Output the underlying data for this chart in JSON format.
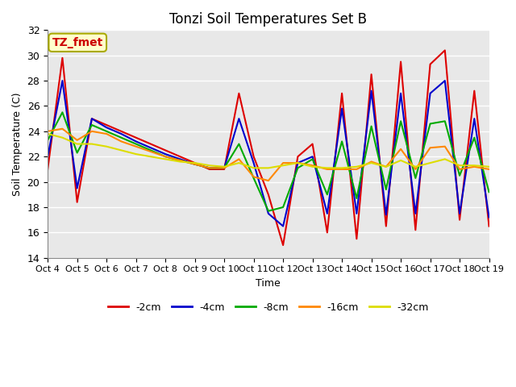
{
  "title": "Tonzi Soil Temperatures Set B",
  "xlabel": "Time",
  "ylabel": "Soil Temperature (C)",
  "ylim": [
    14,
    32
  ],
  "xlim": [
    0,
    15
  ],
  "x_tick_labels": [
    "Oct 4",
    "Oct 5",
    "Oct 6",
    "Oct 7",
    "Oct 8",
    "Oct 9",
    "Oct 10",
    "Oct 11",
    "Oct 12",
    "Oct 13",
    "Oct 14",
    "Oct 15",
    "Oct 16",
    "Oct 17",
    "Oct 18",
    "Oct 19"
  ],
  "yticks": [
    14,
    16,
    18,
    20,
    22,
    24,
    26,
    28,
    30,
    32
  ],
  "annotation_text": "TZ_fmet",
  "annotation_color": "#cc0000",
  "annotation_bg": "#ffffcc",
  "annotation_border": "#aaaa00",
  "series": {
    "-2cm": {
      "color": "#dd0000",
      "x": [
        0.0,
        0.5,
        1.0,
        1.5,
        2.0,
        2.5,
        3.0,
        3.5,
        4.0,
        4.5,
        5.0,
        5.5,
        6.0,
        6.5,
        7.0,
        7.5,
        8.0,
        8.5,
        9.0,
        9.5,
        10.0,
        10.5,
        11.0,
        11.5,
        12.0,
        12.5,
        13.0,
        13.5,
        14.0,
        14.5,
        15.0
      ],
      "y": [
        21.0,
        29.8,
        18.4,
        25.0,
        24.5,
        24.0,
        23.5,
        23.0,
        22.5,
        22.0,
        21.5,
        21.0,
        21.0,
        27.0,
        22.0,
        19.0,
        15.0,
        22.0,
        23.0,
        16.0,
        27.0,
        15.5,
        28.5,
        16.5,
        29.5,
        16.2,
        29.3,
        30.4,
        17.0,
        27.2,
        16.5
      ]
    },
    "-4cm": {
      "color": "#0000cc",
      "x": [
        0.0,
        0.5,
        1.0,
        1.5,
        2.0,
        2.5,
        3.0,
        3.5,
        4.0,
        4.5,
        5.0,
        5.5,
        6.0,
        6.5,
        7.0,
        7.5,
        8.0,
        8.5,
        9.0,
        9.5,
        10.0,
        10.5,
        11.0,
        11.5,
        12.0,
        12.5,
        13.0,
        13.5,
        14.0,
        14.5,
        15.0
      ],
      "y": [
        22.0,
        28.0,
        19.5,
        25.0,
        24.3,
        23.8,
        23.2,
        22.7,
        22.2,
        21.8,
        21.4,
        21.1,
        21.1,
        25.0,
        21.5,
        17.5,
        16.5,
        21.5,
        22.0,
        17.5,
        25.8,
        17.5,
        27.2,
        17.4,
        27.0,
        17.5,
        27.0,
        28.0,
        17.5,
        25.0,
        17.2
      ]
    },
    "-8cm": {
      "color": "#00aa00",
      "x": [
        0.0,
        0.5,
        1.0,
        1.5,
        2.0,
        2.5,
        3.0,
        3.5,
        4.0,
        4.5,
        5.0,
        5.5,
        6.0,
        6.5,
        7.0,
        7.5,
        8.0,
        8.5,
        9.0,
        9.5,
        10.0,
        10.5,
        11.0,
        11.5,
        12.0,
        12.5,
        13.0,
        13.5,
        14.0,
        14.5,
        15.0
      ],
      "y": [
        23.3,
        25.5,
        22.3,
        24.5,
        24.0,
        23.5,
        23.0,
        22.5,
        22.0,
        21.7,
        21.4,
        21.1,
        21.1,
        23.0,
        20.3,
        17.7,
        18.0,
        21.1,
        21.8,
        19.0,
        23.2,
        18.7,
        24.4,
        19.4,
        24.8,
        20.3,
        24.6,
        24.8,
        20.5,
        23.5,
        19.2
      ]
    },
    "-16cm": {
      "color": "#ff8800",
      "x": [
        0.0,
        0.5,
        1.0,
        1.5,
        2.0,
        2.5,
        3.0,
        3.5,
        4.0,
        4.5,
        5.0,
        5.5,
        6.0,
        6.5,
        7.0,
        7.5,
        8.0,
        8.5,
        9.0,
        9.5,
        10.0,
        10.5,
        11.0,
        11.5,
        12.0,
        12.5,
        13.0,
        13.5,
        14.0,
        14.5,
        15.0
      ],
      "y": [
        24.0,
        24.2,
        23.3,
        24.0,
        23.8,
        23.2,
        22.8,
        22.4,
        22.0,
        21.7,
        21.4,
        21.1,
        21.1,
        21.8,
        20.4,
        20.1,
        21.5,
        21.5,
        21.3,
        21.0,
        21.0,
        21.0,
        21.6,
        21.2,
        22.6,
        21.0,
        22.7,
        22.8,
        21.0,
        21.2,
        21.0
      ]
    },
    "-32cm": {
      "color": "#dddd00",
      "x": [
        0.0,
        0.5,
        1.0,
        1.5,
        2.0,
        2.5,
        3.0,
        3.5,
        4.0,
        4.5,
        5.0,
        5.5,
        6.0,
        6.5,
        7.0,
        7.5,
        8.0,
        8.5,
        9.0,
        9.5,
        10.0,
        10.5,
        11.0,
        11.5,
        12.0,
        12.5,
        13.0,
        13.5,
        14.0,
        14.5,
        15.0
      ],
      "y": [
        23.8,
        23.5,
        23.0,
        23.0,
        22.8,
        22.5,
        22.2,
        22.0,
        21.8,
        21.6,
        21.5,
        21.3,
        21.2,
        21.5,
        21.1,
        21.1,
        21.3,
        21.5,
        21.2,
        21.1,
        21.1,
        21.2,
        21.5,
        21.2,
        21.7,
        21.2,
        21.5,
        21.8,
        21.3,
        21.3,
        21.2
      ]
    }
  },
  "plot_bg": "#e8e8e8",
  "fig_bg": "#ffffff",
  "grid_color": "#ffffff",
  "grid_alpha": 1.0,
  "linewidth": 1.5
}
